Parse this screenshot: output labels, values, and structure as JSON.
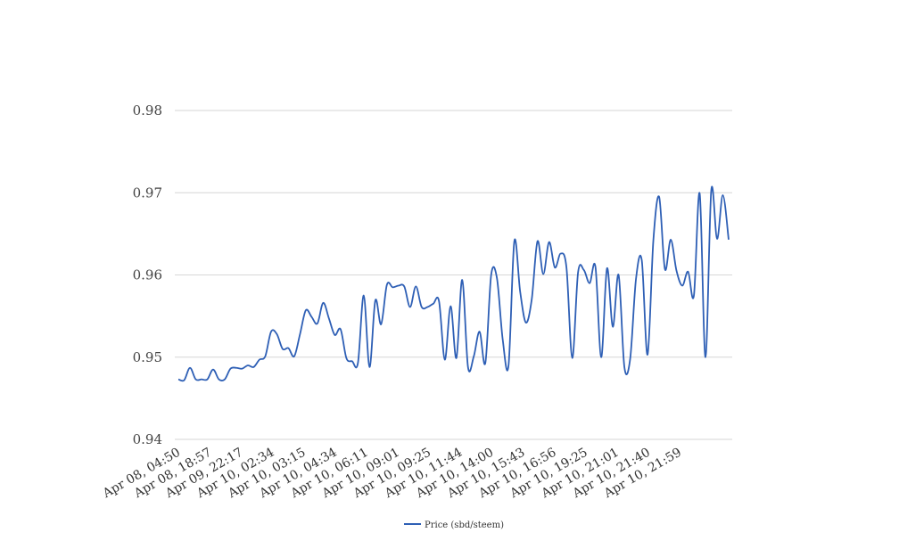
{
  "chart_data": {
    "type": "line",
    "title": "",
    "xlabel": "",
    "ylabel": "",
    "ylim": [
      0.94,
      0.98
    ],
    "yticks": [
      "0.94",
      "0.95",
      "0.96",
      "0.97",
      "0.98"
    ],
    "grid": true,
    "legend": "bottom-center",
    "xtick_labels": [
      "Apr 08, 04:50",
      "Apr 08, 18:57",
      "Apr 09, 22:17",
      "Apr 10, 02:34",
      "Apr 10, 03:15",
      "Apr 10, 04:34",
      "Apr 10, 06:11",
      "Apr 10, 09:01",
      "Apr 10, 09:25",
      "Apr 10, 11:44",
      "Apr 10, 14:00",
      "Apr 10, 15:43",
      "Apr 10, 16:56",
      "Apr 10, 19:25",
      "Apr 10, 21:01",
      "Apr 10, 21:40",
      "Apr 10, 21:59"
    ],
    "series": [
      {
        "name": "Price (sbd/steem)",
        "color": "#2e5fb5",
        "values": [
          0.9473,
          0.9472,
          0.9487,
          0.9473,
          0.9473,
          0.9473,
          0.9485,
          0.9473,
          0.9473,
          0.9486,
          0.9487,
          0.9486,
          0.949,
          0.9488,
          0.9497,
          0.9501,
          0.9531,
          0.9528,
          0.951,
          0.9511,
          0.9501,
          0.9528,
          0.9557,
          0.9549,
          0.9541,
          0.9566,
          0.9547,
          0.9527,
          0.9534,
          0.9499,
          0.9495,
          0.9493,
          0.9575,
          0.9488,
          0.9569,
          0.954,
          0.9588,
          0.9585,
          0.9587,
          0.9586,
          0.9561,
          0.9586,
          0.9561,
          0.9561,
          0.9565,
          0.9568,
          0.9497,
          0.9562,
          0.9499,
          0.9594,
          0.9488,
          0.9501,
          0.9531,
          0.9493,
          0.96,
          0.9596,
          0.9521,
          0.949,
          0.9641,
          0.958,
          0.9542,
          0.957,
          0.9641,
          0.9601,
          0.964,
          0.9609,
          0.9626,
          0.9609,
          0.9499,
          0.9603,
          0.9606,
          0.959,
          0.961,
          0.95,
          0.9608,
          0.9537,
          0.96,
          0.9488,
          0.9498,
          0.9595,
          0.9618,
          0.9503,
          0.9642,
          0.9695,
          0.9607,
          0.9643,
          0.9605,
          0.9587,
          0.9604,
          0.9575,
          0.9699,
          0.95,
          0.9703,
          0.9644,
          0.9697,
          0.9643
        ]
      }
    ]
  }
}
